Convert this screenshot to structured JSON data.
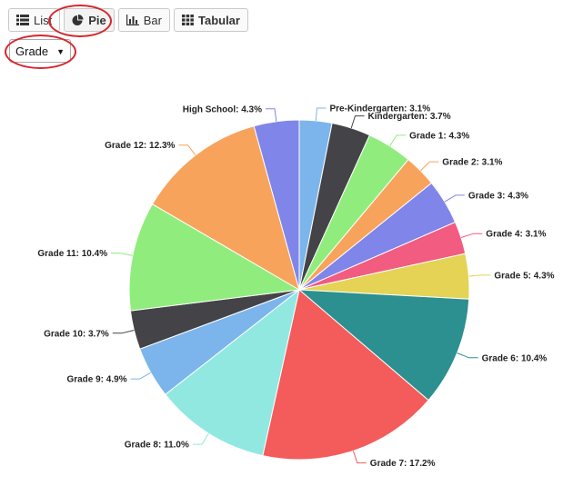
{
  "toolbar": {
    "list_label": "List",
    "pie_label": "Pie",
    "bar_label": "Bar",
    "tabular_label": "Tabular"
  },
  "selector": {
    "value": "Grade"
  },
  "colors": {
    "annotation_ring": "#d6262e"
  },
  "chart_data": {
    "type": "pie",
    "unit": "%",
    "slices": [
      {
        "label": "Pre-Kindergarten",
        "value": 3.1,
        "color": "#7cb5ec"
      },
      {
        "label": "Kindergarten",
        "value": 3.7,
        "color": "#434348"
      },
      {
        "label": "Grade 1",
        "value": 4.3,
        "color": "#90ed7d"
      },
      {
        "label": "Grade 2",
        "value": 3.1,
        "color": "#f7a35c"
      },
      {
        "label": "Grade 3",
        "value": 4.3,
        "color": "#8085e9"
      },
      {
        "label": "Grade 4",
        "value": 3.1,
        "color": "#f15c80"
      },
      {
        "label": "Grade 5",
        "value": 4.3,
        "color": "#e4d354"
      },
      {
        "label": "Grade 6",
        "value": 10.4,
        "color": "#2b908f"
      },
      {
        "label": "Grade 7",
        "value": 17.2,
        "color": "#f45b5b"
      },
      {
        "label": "Grade 8",
        "value": 11.0,
        "color": "#91e8e1"
      },
      {
        "label": "Grade 9",
        "value": 4.9,
        "color": "#7cb5ec"
      },
      {
        "label": "Grade 10",
        "value": 3.7,
        "color": "#434348"
      },
      {
        "label": "Grade 11",
        "value": 10.4,
        "color": "#90ed7d"
      },
      {
        "label": "Grade 12",
        "value": 12.3,
        "color": "#f7a35c"
      },
      {
        "label": "High School",
        "value": 4.3,
        "color": "#8085e9"
      }
    ]
  }
}
